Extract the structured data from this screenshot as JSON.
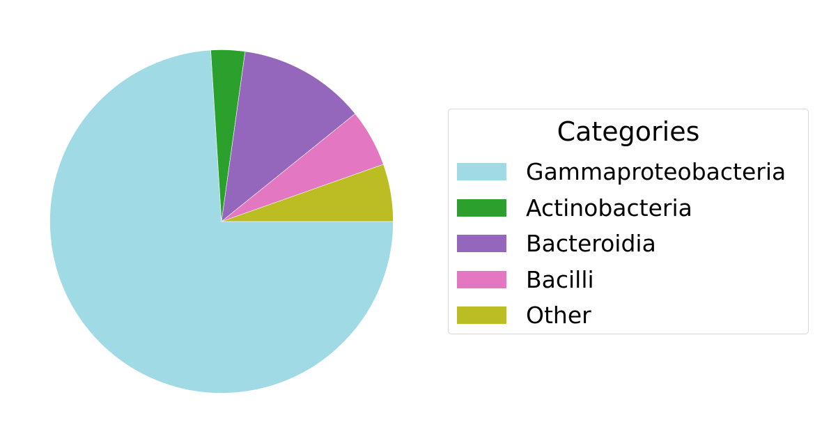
{
  "chart_data": {
    "type": "pie",
    "title": "",
    "legend": {
      "title": "Categories",
      "placement": "right"
    },
    "start_angle_deg": 0,
    "direction": "clockwise",
    "slices": [
      {
        "label": "Gammaproteobacteria",
        "value": 74.0,
        "color": "#9fdae5"
      },
      {
        "label": "Actinobacteria",
        "value": 3.2,
        "color": "#2ca02c"
      },
      {
        "label": "Bacteroidia",
        "value": 12.0,
        "color": "#9467bd"
      },
      {
        "label": "Bacilli",
        "value": 5.4,
        "color": "#e377c2"
      },
      {
        "label": "Other",
        "value": 5.4,
        "color": "#bcbd22"
      }
    ]
  }
}
